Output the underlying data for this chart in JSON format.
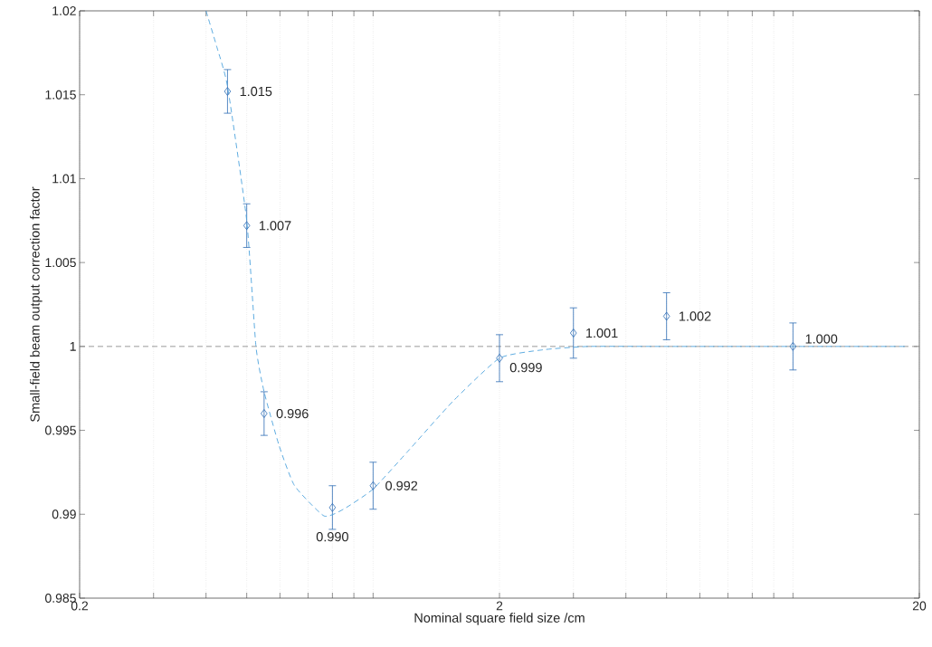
{
  "chart_data": {
    "type": "scatter",
    "xlabel": "Nominal square field size /cm",
    "ylabel": "Small-field beam output correction factor",
    "log": "x",
    "grid": "x",
    "xlim": [
      0.2,
      20
    ],
    "ylim": [
      0.985,
      1.02
    ],
    "xticks": [
      0.2,
      {
        "value": 0.3,
        "label": null
      },
      {
        "value": 0.4,
        "label": null
      },
      {
        "value": 0.5,
        "label": null
      },
      {
        "value": 0.6,
        "label": null
      },
      {
        "value": 0.7,
        "label": null
      },
      {
        "value": 0.8,
        "label": null
      },
      {
        "value": 0.9,
        "label": null
      },
      {
        "value": 1,
        "label": null
      },
      2,
      {
        "value": 3,
        "label": null
      },
      {
        "value": 4,
        "label": null
      },
      {
        "value": 5,
        "label": null
      },
      {
        "value": 6,
        "label": null
      },
      {
        "value": 7,
        "label": null
      },
      {
        "value": 8,
        "label": null
      },
      {
        "value": 9,
        "label": null
      },
      {
        "value": 10,
        "label": null
      },
      20
    ],
    "yticks": [
      0.985,
      0.99,
      0.995,
      1,
      1.005,
      1.01,
      1.015,
      1.02
    ],
    "ref_lines": [
      {
        "axis": "y",
        "value": 1,
        "color": "#808080",
        "line_style": "dashed"
      }
    ],
    "series": [
      {
        "color": "#2e6db5",
        "marker": "diamond",
        "x": [
          0.45,
          0.5,
          0.55,
          0.8,
          1.0,
          2,
          3,
          5,
          10
        ],
        "values": [
          1.0152,
          1.0072,
          0.996,
          0.9904,
          0.9917,
          0.9993,
          1.0008,
          1.0018,
          1.0
        ],
        "errors": [
          0.0013,
          0.0013,
          0.0013,
          0.0013,
          0.0014,
          0.0014,
          0.0015,
          0.0014,
          0.0014
        ],
        "value_labels": [
          "1.015",
          "1.007",
          "0.996",
          "0.990",
          "0.992",
          "0.999",
          "1.001",
          "1.002",
          "1.000"
        ]
      },
      {
        "type": "line",
        "color": "#4da3dc",
        "line_style": "dashed",
        "marker": "none",
        "x": [
          0.4,
          0.425,
          0.45,
          0.5,
          0.526,
          0.55,
          0.597,
          0.65,
          0.764,
          0.85,
          1.0,
          1.205,
          1.545,
          2.0,
          2.54,
          3.25,
          5,
          10,
          18.5
        ],
        "values": [
          1.02,
          1.0178,
          1.0155,
          1.0075,
          1.0,
          0.9973,
          0.9941,
          0.9917,
          0.9899,
          0.9903,
          0.9915,
          0.9937,
          0.9967,
          0.9993,
          0.9998,
          1.0,
          1.0,
          1.0,
          1.0
        ]
      }
    ]
  }
}
